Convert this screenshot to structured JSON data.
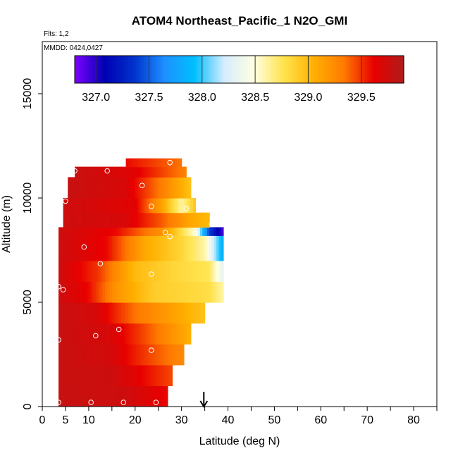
{
  "chart_data": {
    "type": "heatmap",
    "title": "ATOM4 Northeast_Pacific_1 N2O_GMI",
    "flights_label": "Flts: 1,2",
    "dates_label": "MMDD: 0424,0427",
    "xlabel": "Latitude (deg N)",
    "ylabel": "Altitude (m)",
    "xlim": [
      0,
      85
    ],
    "ylim": [
      0,
      17500
    ],
    "x_ticks": [
      0,
      5,
      10,
      20,
      30,
      40,
      50,
      60,
      70,
      80
    ],
    "y_ticks": [
      0,
      5000,
      10000,
      15000
    ],
    "colorbar": {
      "range": [
        326.8,
        329.9
      ],
      "ticks": [
        327.0,
        327.5,
        328.0,
        328.5,
        329.0,
        329.5
      ],
      "tick_labels": [
        "327.0",
        "327.5",
        "328.0",
        "328.5",
        "329.0",
        "329.5"
      ],
      "colors": [
        "#7f00ff",
        "#0000b3",
        "#0033cc",
        "#1e90ff",
        "#00bfff",
        "#d6ecff",
        "#ffffe0",
        "#ffe34d",
        "#ffb000",
        "#ff7a00",
        "#e80000",
        "#b01c1c"
      ]
    },
    "arrow_marker_lat": 34.8,
    "value_profiles": [
      {
        "alt_max": 1000,
        "lat_range": [
          3.5,
          27
        ],
        "values": [
          [
            3.5,
            329.78
          ],
          [
            18,
            329.75
          ],
          [
            27,
            329.6
          ]
        ]
      },
      {
        "alt_max": 2000,
        "lat_range": [
          3.5,
          28
        ],
        "values": [
          [
            3.5,
            329.78
          ],
          [
            15,
            329.75
          ],
          [
            20,
            329.65
          ],
          [
            28,
            329.45
          ]
        ]
      },
      {
        "alt_max": 3000,
        "lat_range": [
          3.5,
          30.5
        ],
        "values": [
          [
            3.5,
            329.78
          ],
          [
            15,
            329.72
          ],
          [
            20,
            329.55
          ],
          [
            30.5,
            329.25
          ]
        ]
      },
      {
        "alt_max": 4000,
        "lat_range": [
          3.5,
          32
        ],
        "values": [
          [
            3.5,
            329.78
          ],
          [
            15,
            329.7
          ],
          [
            22,
            329.45
          ],
          [
            32,
            329.05
          ]
        ]
      },
      {
        "alt_max": 5000,
        "lat_range": [
          3.5,
          35
        ],
        "values": [
          [
            3.5,
            329.78
          ],
          [
            12,
            329.7
          ],
          [
            20,
            329.35
          ],
          [
            35,
            328.95
          ]
        ]
      },
      {
        "alt_max": 6000,
        "lat_range": [
          3.5,
          39
        ],
        "values": [
          [
            3.5,
            329.75
          ],
          [
            10,
            329.6
          ],
          [
            16,
            329.2
          ],
          [
            24,
            328.9
          ],
          [
            36,
            328.8
          ],
          [
            39,
            328.6
          ]
        ]
      },
      {
        "alt_max": 7000,
        "lat_range": [
          3.5,
          39
        ],
        "values": [
          [
            3.5,
            329.75
          ],
          [
            12,
            329.5
          ],
          [
            20,
            329.0
          ],
          [
            28,
            328.85
          ],
          [
            36,
            328.75
          ],
          [
            39,
            328.3
          ]
        ]
      },
      {
        "alt_max": 8200,
        "lat_range": [
          3.5,
          39
        ],
        "values": [
          [
            3.5,
            329.75
          ],
          [
            14,
            329.6
          ],
          [
            22,
            329.1
          ],
          [
            30,
            328.85
          ],
          [
            35,
            328.6
          ],
          [
            37,
            328.2
          ],
          [
            39,
            327.8
          ]
        ]
      },
      {
        "alt_max": 8600,
        "lat_range": [
          3.5,
          39
        ],
        "values": [
          [
            3.5,
            329.75
          ],
          [
            16,
            329.6
          ],
          [
            26,
            329.2
          ],
          [
            33,
            328.5
          ],
          [
            36,
            327.4
          ],
          [
            39,
            326.9
          ]
        ]
      },
      {
        "alt_max": 9300,
        "lat_range": [
          4.5,
          36
        ],
        "values": [
          [
            4.5,
            329.75
          ],
          [
            18,
            329.7
          ],
          [
            26,
            329.4
          ],
          [
            32,
            329.1
          ],
          [
            36,
            329.0
          ]
        ]
      },
      {
        "alt_max": 10000,
        "lat_range": [
          4.5,
          33
        ],
        "values": [
          [
            4.5,
            329.75
          ],
          [
            20,
            329.65
          ],
          [
            26,
            329.1
          ],
          [
            30,
            328.6
          ],
          [
            33,
            328.95
          ]
        ]
      },
      {
        "alt_max": 11000,
        "lat_range": [
          5.5,
          32
        ],
        "values": [
          [
            5.5,
            329.78
          ],
          [
            18,
            329.7
          ],
          [
            26,
            329.3
          ],
          [
            32,
            328.95
          ]
        ]
      },
      {
        "alt_max": 11500,
        "lat_range": [
          7,
          31
        ],
        "values": [
          [
            7,
            329.78
          ],
          [
            20,
            329.65
          ],
          [
            31,
            329.3
          ]
        ]
      },
      {
        "alt_max": 11900,
        "lat_range": [
          18,
          30
        ],
        "values": [
          [
            18,
            329.6
          ],
          [
            30,
            329.35
          ]
        ]
      }
    ],
    "observations": [
      [
        3.5,
        200
      ],
      [
        10.5,
        200
      ],
      [
        17.5,
        200
      ],
      [
        24.5,
        200
      ],
      [
        3.5,
        3200
      ],
      [
        11.5,
        3400
      ],
      [
        16.5,
        3700
      ],
      [
        23.5,
        2700
      ],
      [
        3.5,
        5750
      ],
      [
        4.5,
        5600
      ],
      [
        23.5,
        6350
      ],
      [
        12.5,
        6850
      ],
      [
        9,
        7650
      ],
      [
        27.5,
        8150
      ],
      [
        33,
        8300
      ],
      [
        26.5,
        8350
      ],
      [
        36.5,
        8750
      ],
      [
        5,
        9850
      ],
      [
        23.5,
        9600
      ],
      [
        31,
        9500
      ],
      [
        21.5,
        10600
      ],
      [
        7,
        11300
      ],
      [
        14,
        11300
      ],
      [
        27.5,
        11700
      ]
    ]
  }
}
